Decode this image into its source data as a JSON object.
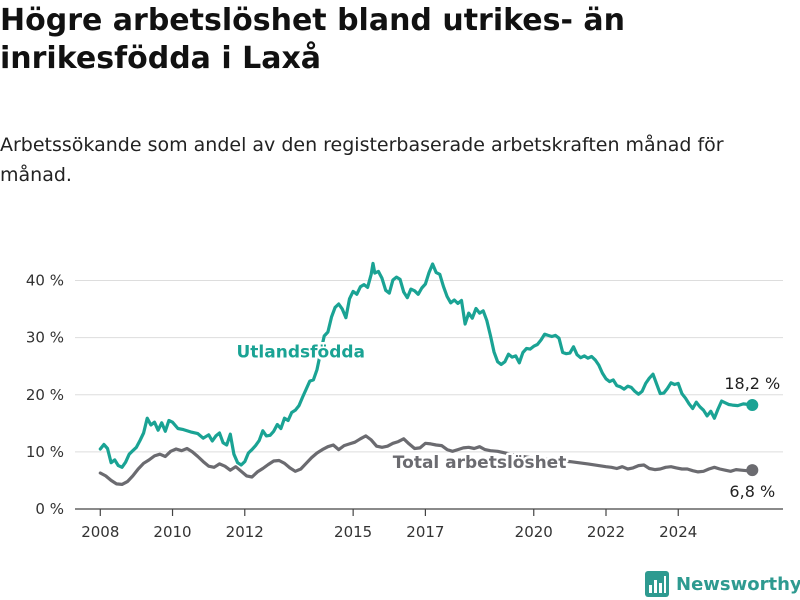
{
  "title": "Högre arbetslöshet bland utrikes- än inrikesfödda i Laxå",
  "subtitle": "Arbetssökande som andel av den registerbaserade arbetskraften månad för månad.",
  "brand": "Newsworthy",
  "colors": {
    "foreign": "#1aa394",
    "total": "#6b6b70",
    "axis": "#444444",
    "grid": "#dddddd"
  },
  "chart_data": {
    "type": "line",
    "x_unit": "year",
    "x_ticks": [
      "2008",
      "2010",
      "2012",
      "2015",
      "2017",
      "2020",
      "2022",
      "2024"
    ],
    "y_ticks": [
      "0 %",
      "10 %",
      "20 %",
      "30 %",
      "40 %"
    ],
    "ylim": [
      0,
      45
    ],
    "grid": "horizontal",
    "series": [
      {
        "name": "Utlandsfödda",
        "color": "#1aa394",
        "end_label": "18,2 %",
        "points": [
          [
            2008.0,
            10.5
          ],
          [
            2008.1,
            11.3
          ],
          [
            2008.2,
            10.6
          ],
          [
            2008.3,
            8.1
          ],
          [
            2008.4,
            8.6
          ],
          [
            2008.5,
            7.6
          ],
          [
            2008.6,
            7.3
          ],
          [
            2008.7,
            8.2
          ],
          [
            2008.8,
            9.6
          ],
          [
            2008.9,
            10.2
          ],
          [
            2009.0,
            10.8
          ],
          [
            2009.1,
            12.0
          ],
          [
            2009.2,
            13.3
          ],
          [
            2009.3,
            15.9
          ],
          [
            2009.4,
            14.7
          ],
          [
            2009.5,
            15.2
          ],
          [
            2009.6,
            13.8
          ],
          [
            2009.7,
            15.1
          ],
          [
            2009.8,
            13.6
          ],
          [
            2009.9,
            15.5
          ],
          [
            2010.0,
            15.2
          ],
          [
            2010.15,
            14.1
          ],
          [
            2010.3,
            13.9
          ],
          [
            2010.5,
            13.5
          ],
          [
            2010.7,
            13.2
          ],
          [
            2010.85,
            12.4
          ],
          [
            2011.0,
            13.0
          ],
          [
            2011.1,
            11.9
          ],
          [
            2011.2,
            12.8
          ],
          [
            2011.3,
            13.3
          ],
          [
            2011.4,
            11.6
          ],
          [
            2011.5,
            11.2
          ],
          [
            2011.6,
            13.1
          ],
          [
            2011.7,
            9.6
          ],
          [
            2011.8,
            8.1
          ],
          [
            2011.9,
            7.7
          ],
          [
            2012.0,
            8.3
          ],
          [
            2012.1,
            9.8
          ],
          [
            2012.2,
            10.4
          ],
          [
            2012.3,
            11.1
          ],
          [
            2012.4,
            12.0
          ],
          [
            2012.5,
            13.7
          ],
          [
            2012.6,
            12.8
          ],
          [
            2012.7,
            12.9
          ],
          [
            2012.8,
            13.6
          ],
          [
            2012.9,
            14.8
          ],
          [
            2013.0,
            14.1
          ],
          [
            2013.1,
            15.9
          ],
          [
            2013.2,
            15.5
          ],
          [
            2013.3,
            16.9
          ],
          [
            2013.4,
            17.3
          ],
          [
            2013.5,
            18.1
          ],
          [
            2013.6,
            19.6
          ],
          [
            2013.7,
            21.0
          ],
          [
            2013.8,
            22.4
          ],
          [
            2013.9,
            22.6
          ],
          [
            2014.0,
            24.4
          ],
          [
            2014.1,
            27.4
          ],
          [
            2014.2,
            30.3
          ],
          [
            2014.3,
            31.0
          ],
          [
            2014.4,
            33.6
          ],
          [
            2014.5,
            35.3
          ],
          [
            2014.6,
            35.9
          ],
          [
            2014.7,
            35.0
          ],
          [
            2014.8,
            33.5
          ],
          [
            2014.9,
            36.8
          ],
          [
            2015.0,
            38.1
          ],
          [
            2015.1,
            37.6
          ],
          [
            2015.2,
            38.9
          ],
          [
            2015.3,
            39.3
          ],
          [
            2015.4,
            38.8
          ],
          [
            2015.5,
            41.1
          ],
          [
            2015.55,
            43.0
          ],
          [
            2015.6,
            41.3
          ],
          [
            2015.7,
            41.6
          ],
          [
            2015.8,
            40.4
          ],
          [
            2015.9,
            38.3
          ],
          [
            2016.0,
            37.8
          ],
          [
            2016.1,
            40.1
          ],
          [
            2016.2,
            40.6
          ],
          [
            2016.3,
            40.2
          ],
          [
            2016.4,
            38.0
          ],
          [
            2016.5,
            37.0
          ],
          [
            2016.6,
            38.5
          ],
          [
            2016.7,
            38.2
          ],
          [
            2016.8,
            37.6
          ],
          [
            2016.9,
            38.7
          ],
          [
            2017.0,
            39.4
          ],
          [
            2017.1,
            41.4
          ],
          [
            2017.2,
            42.9
          ],
          [
            2017.3,
            41.4
          ],
          [
            2017.4,
            41.1
          ],
          [
            2017.5,
            39.0
          ],
          [
            2017.6,
            37.2
          ],
          [
            2017.7,
            36.1
          ],
          [
            2017.8,
            36.6
          ],
          [
            2017.9,
            36.0
          ],
          [
            2018.0,
            36.5
          ],
          [
            2018.1,
            32.4
          ],
          [
            2018.2,
            34.3
          ],
          [
            2018.3,
            33.4
          ],
          [
            2018.4,
            35.1
          ],
          [
            2018.5,
            34.3
          ],
          [
            2018.6,
            34.7
          ],
          [
            2018.7,
            33.0
          ],
          [
            2018.8,
            30.4
          ],
          [
            2018.9,
            27.5
          ],
          [
            2019.0,
            25.8
          ],
          [
            2019.1,
            25.3
          ],
          [
            2019.2,
            25.8
          ],
          [
            2019.3,
            27.1
          ],
          [
            2019.4,
            26.6
          ],
          [
            2019.5,
            26.8
          ],
          [
            2019.6,
            25.6
          ],
          [
            2019.7,
            27.4
          ],
          [
            2019.8,
            28.1
          ],
          [
            2019.9,
            28.0
          ],
          [
            2020.0,
            28.5
          ],
          [
            2020.1,
            28.8
          ],
          [
            2020.2,
            29.6
          ],
          [
            2020.3,
            30.6
          ],
          [
            2020.4,
            30.4
          ],
          [
            2020.5,
            30.2
          ],
          [
            2020.6,
            30.4
          ],
          [
            2020.7,
            29.9
          ],
          [
            2020.8,
            27.4
          ],
          [
            2020.9,
            27.2
          ],
          [
            2021.0,
            27.3
          ],
          [
            2021.1,
            28.4
          ],
          [
            2021.2,
            27.0
          ],
          [
            2021.3,
            26.5
          ],
          [
            2021.4,
            26.8
          ],
          [
            2021.5,
            26.4
          ],
          [
            2021.6,
            26.7
          ],
          [
            2021.7,
            26.1
          ],
          [
            2021.8,
            25.2
          ],
          [
            2021.9,
            23.8
          ],
          [
            2022.0,
            22.8
          ],
          [
            2022.1,
            22.3
          ],
          [
            2022.2,
            22.6
          ],
          [
            2022.3,
            21.6
          ],
          [
            2022.4,
            21.4
          ],
          [
            2022.5,
            21.0
          ],
          [
            2022.6,
            21.5
          ],
          [
            2022.7,
            21.3
          ],
          [
            2022.8,
            20.6
          ],
          [
            2022.9,
            20.1
          ],
          [
            2023.0,
            20.6
          ],
          [
            2023.1,
            22.0
          ],
          [
            2023.2,
            22.9
          ],
          [
            2023.3,
            23.6
          ],
          [
            2023.4,
            21.9
          ],
          [
            2023.5,
            20.2
          ],
          [
            2023.6,
            20.3
          ],
          [
            2023.7,
            21.1
          ],
          [
            2023.8,
            22.1
          ],
          [
            2023.9,
            21.8
          ],
          [
            2024.0,
            22.0
          ],
          [
            2024.1,
            20.2
          ],
          [
            2024.2,
            19.4
          ],
          [
            2024.3,
            18.4
          ],
          [
            2024.4,
            17.6
          ],
          [
            2024.5,
            18.7
          ],
          [
            2024.6,
            17.9
          ],
          [
            2024.7,
            17.3
          ],
          [
            2024.8,
            16.3
          ],
          [
            2024.9,
            17.1
          ],
          [
            2025.0,
            15.9
          ],
          [
            2025.1,
            17.5
          ],
          [
            2025.2,
            18.9
          ],
          [
            2025.3,
            18.6
          ],
          [
            2025.4,
            18.3
          ],
          [
            2025.5,
            18.2
          ],
          [
            2025.65,
            18.1
          ],
          [
            2025.8,
            18.4
          ],
          [
            2025.95,
            18.3
          ],
          [
            2026.05,
            18.2
          ]
        ]
      },
      {
        "name": "Total arbetslöshet",
        "color": "#6b6b70",
        "end_label": "6,8 %",
        "points": [
          [
            2008.0,
            6.3
          ],
          [
            2008.15,
            5.8
          ],
          [
            2008.3,
            5.0
          ],
          [
            2008.45,
            4.4
          ],
          [
            2008.6,
            4.3
          ],
          [
            2008.75,
            4.8
          ],
          [
            2008.9,
            5.8
          ],
          [
            2009.05,
            7.0
          ],
          [
            2009.2,
            8.0
          ],
          [
            2009.35,
            8.6
          ],
          [
            2009.5,
            9.3
          ],
          [
            2009.65,
            9.6
          ],
          [
            2009.8,
            9.2
          ],
          [
            2009.95,
            10.1
          ],
          [
            2010.1,
            10.5
          ],
          [
            2010.25,
            10.2
          ],
          [
            2010.4,
            10.6
          ],
          [
            2010.55,
            10.0
          ],
          [
            2010.7,
            9.2
          ],
          [
            2010.85,
            8.3
          ],
          [
            2011.0,
            7.5
          ],
          [
            2011.15,
            7.3
          ],
          [
            2011.3,
            7.9
          ],
          [
            2011.45,
            7.5
          ],
          [
            2011.6,
            6.8
          ],
          [
            2011.75,
            7.4
          ],
          [
            2011.9,
            6.6
          ],
          [
            2012.05,
            5.8
          ],
          [
            2012.2,
            5.6
          ],
          [
            2012.35,
            6.5
          ],
          [
            2012.5,
            7.1
          ],
          [
            2012.65,
            7.8
          ],
          [
            2012.8,
            8.4
          ],
          [
            2012.95,
            8.5
          ],
          [
            2013.1,
            8.0
          ],
          [
            2013.25,
            7.2
          ],
          [
            2013.4,
            6.6
          ],
          [
            2013.55,
            7.0
          ],
          [
            2013.7,
            8.0
          ],
          [
            2013.85,
            9.0
          ],
          [
            2014.0,
            9.8
          ],
          [
            2014.15,
            10.4
          ],
          [
            2014.3,
            10.9
          ],
          [
            2014.45,
            11.2
          ],
          [
            2014.6,
            10.4
          ],
          [
            2014.75,
            11.1
          ],
          [
            2014.9,
            11.4
          ],
          [
            2015.05,
            11.7
          ],
          [
            2015.2,
            12.3
          ],
          [
            2015.35,
            12.8
          ],
          [
            2015.5,
            12.1
          ],
          [
            2015.65,
            11.0
          ],
          [
            2015.8,
            10.8
          ],
          [
            2015.95,
            11.0
          ],
          [
            2016.1,
            11.5
          ],
          [
            2016.25,
            11.8
          ],
          [
            2016.4,
            12.3
          ],
          [
            2016.55,
            11.4
          ],
          [
            2016.7,
            10.6
          ],
          [
            2016.85,
            10.7
          ],
          [
            2017.0,
            11.5
          ],
          [
            2017.15,
            11.4
          ],
          [
            2017.3,
            11.2
          ],
          [
            2017.45,
            11.1
          ],
          [
            2017.6,
            10.4
          ],
          [
            2017.75,
            10.1
          ],
          [
            2017.9,
            10.4
          ],
          [
            2018.05,
            10.7
          ],
          [
            2018.2,
            10.8
          ],
          [
            2018.35,
            10.6
          ],
          [
            2018.5,
            10.9
          ],
          [
            2018.65,
            10.4
          ],
          [
            2018.8,
            10.2
          ],
          [
            2019.0,
            10.1
          ],
          [
            2019.5,
            9.4
          ],
          [
            2020.0,
            8.9
          ],
          [
            2020.5,
            8.6
          ],
          [
            2021.0,
            8.3
          ],
          [
            2021.5,
            7.9
          ],
          [
            2022.0,
            7.4
          ],
          [
            2022.15,
            7.3
          ],
          [
            2022.3,
            7.1
          ],
          [
            2022.45,
            7.4
          ],
          [
            2022.6,
            7.0
          ],
          [
            2022.75,
            7.2
          ],
          [
            2022.9,
            7.6
          ],
          [
            2023.05,
            7.7
          ],
          [
            2023.2,
            7.1
          ],
          [
            2023.35,
            6.9
          ],
          [
            2023.5,
            7.0
          ],
          [
            2023.65,
            7.3
          ],
          [
            2023.8,
            7.4
          ],
          [
            2023.95,
            7.2
          ],
          [
            2024.1,
            7.0
          ],
          [
            2024.25,
            7.0
          ],
          [
            2024.4,
            6.7
          ],
          [
            2024.55,
            6.5
          ],
          [
            2024.7,
            6.6
          ],
          [
            2024.85,
            7.0
          ],
          [
            2025.0,
            7.3
          ],
          [
            2025.15,
            7.0
          ],
          [
            2025.3,
            6.8
          ],
          [
            2025.45,
            6.6
          ],
          [
            2025.6,
            6.9
          ],
          [
            2025.75,
            6.8
          ],
          [
            2025.9,
            6.7
          ],
          [
            2026.05,
            6.8
          ]
        ]
      }
    ]
  }
}
